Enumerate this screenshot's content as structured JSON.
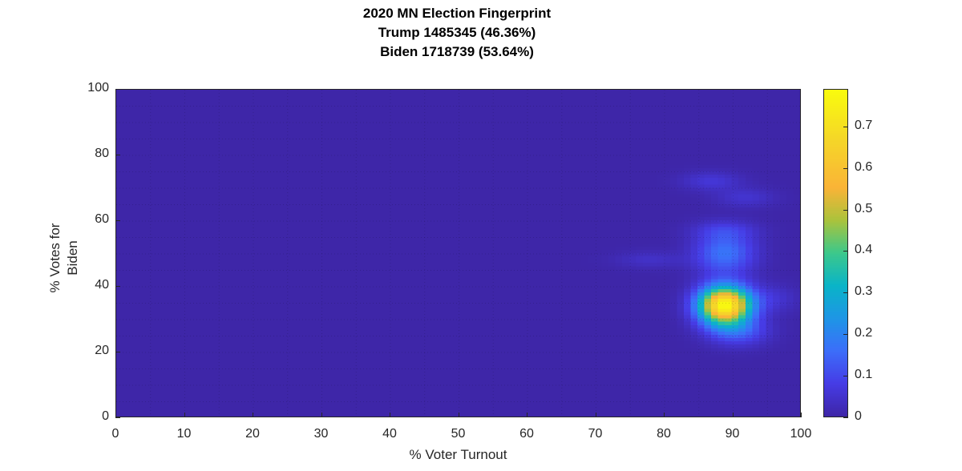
{
  "chart_data": {
    "type": "heatmap",
    "title": [
      "2020 MN Election Fingerprint",
      "Trump 1485345 (46.36%)",
      "Biden 1718739 (53.64%)"
    ],
    "xlabel": "% Voter Turnout",
    "ylabel": [
      "% Votes for",
      "Biden"
    ],
    "xlim": [
      0,
      100
    ],
    "ylim": [
      0,
      100
    ],
    "xticks": [
      0,
      10,
      20,
      30,
      40,
      50,
      60,
      70,
      80,
      90,
      100
    ],
    "yticks": [
      0,
      20,
      40,
      60,
      80,
      100
    ],
    "colorbar": {
      "colormap": "parula",
      "clim": [
        0,
        0.79
      ],
      "ticks": [
        0,
        0.1,
        0.2,
        0.3,
        0.4,
        0.5,
        0.6,
        0.7
      ]
    },
    "grid": true,
    "hotspots": [
      {
        "x": 89,
        "y": 34,
        "sx": 2.6,
        "sy": 4.0,
        "peak": 0.79
      },
      {
        "x": 89,
        "y": 50,
        "sx": 3.0,
        "sy": 4.5,
        "peak": 0.17
      },
      {
        "x": 89,
        "y": 57,
        "sx": 3.2,
        "sy": 2.0,
        "peak": 0.06
      },
      {
        "x": 87,
        "y": 72,
        "sx": 3.0,
        "sy": 2.0,
        "peak": 0.06
      },
      {
        "x": 92,
        "y": 67,
        "sx": 3.0,
        "sy": 2.0,
        "peak": 0.05
      },
      {
        "x": 78,
        "y": 48,
        "sx": 3.5,
        "sy": 1.8,
        "peak": 0.04
      },
      {
        "x": 96,
        "y": 36,
        "sx": 2.5,
        "sy": 3.0,
        "peak": 0.05
      },
      {
        "x": 91,
        "y": 26,
        "sx": 3.0,
        "sy": 3.0,
        "peak": 0.12
      }
    ]
  }
}
